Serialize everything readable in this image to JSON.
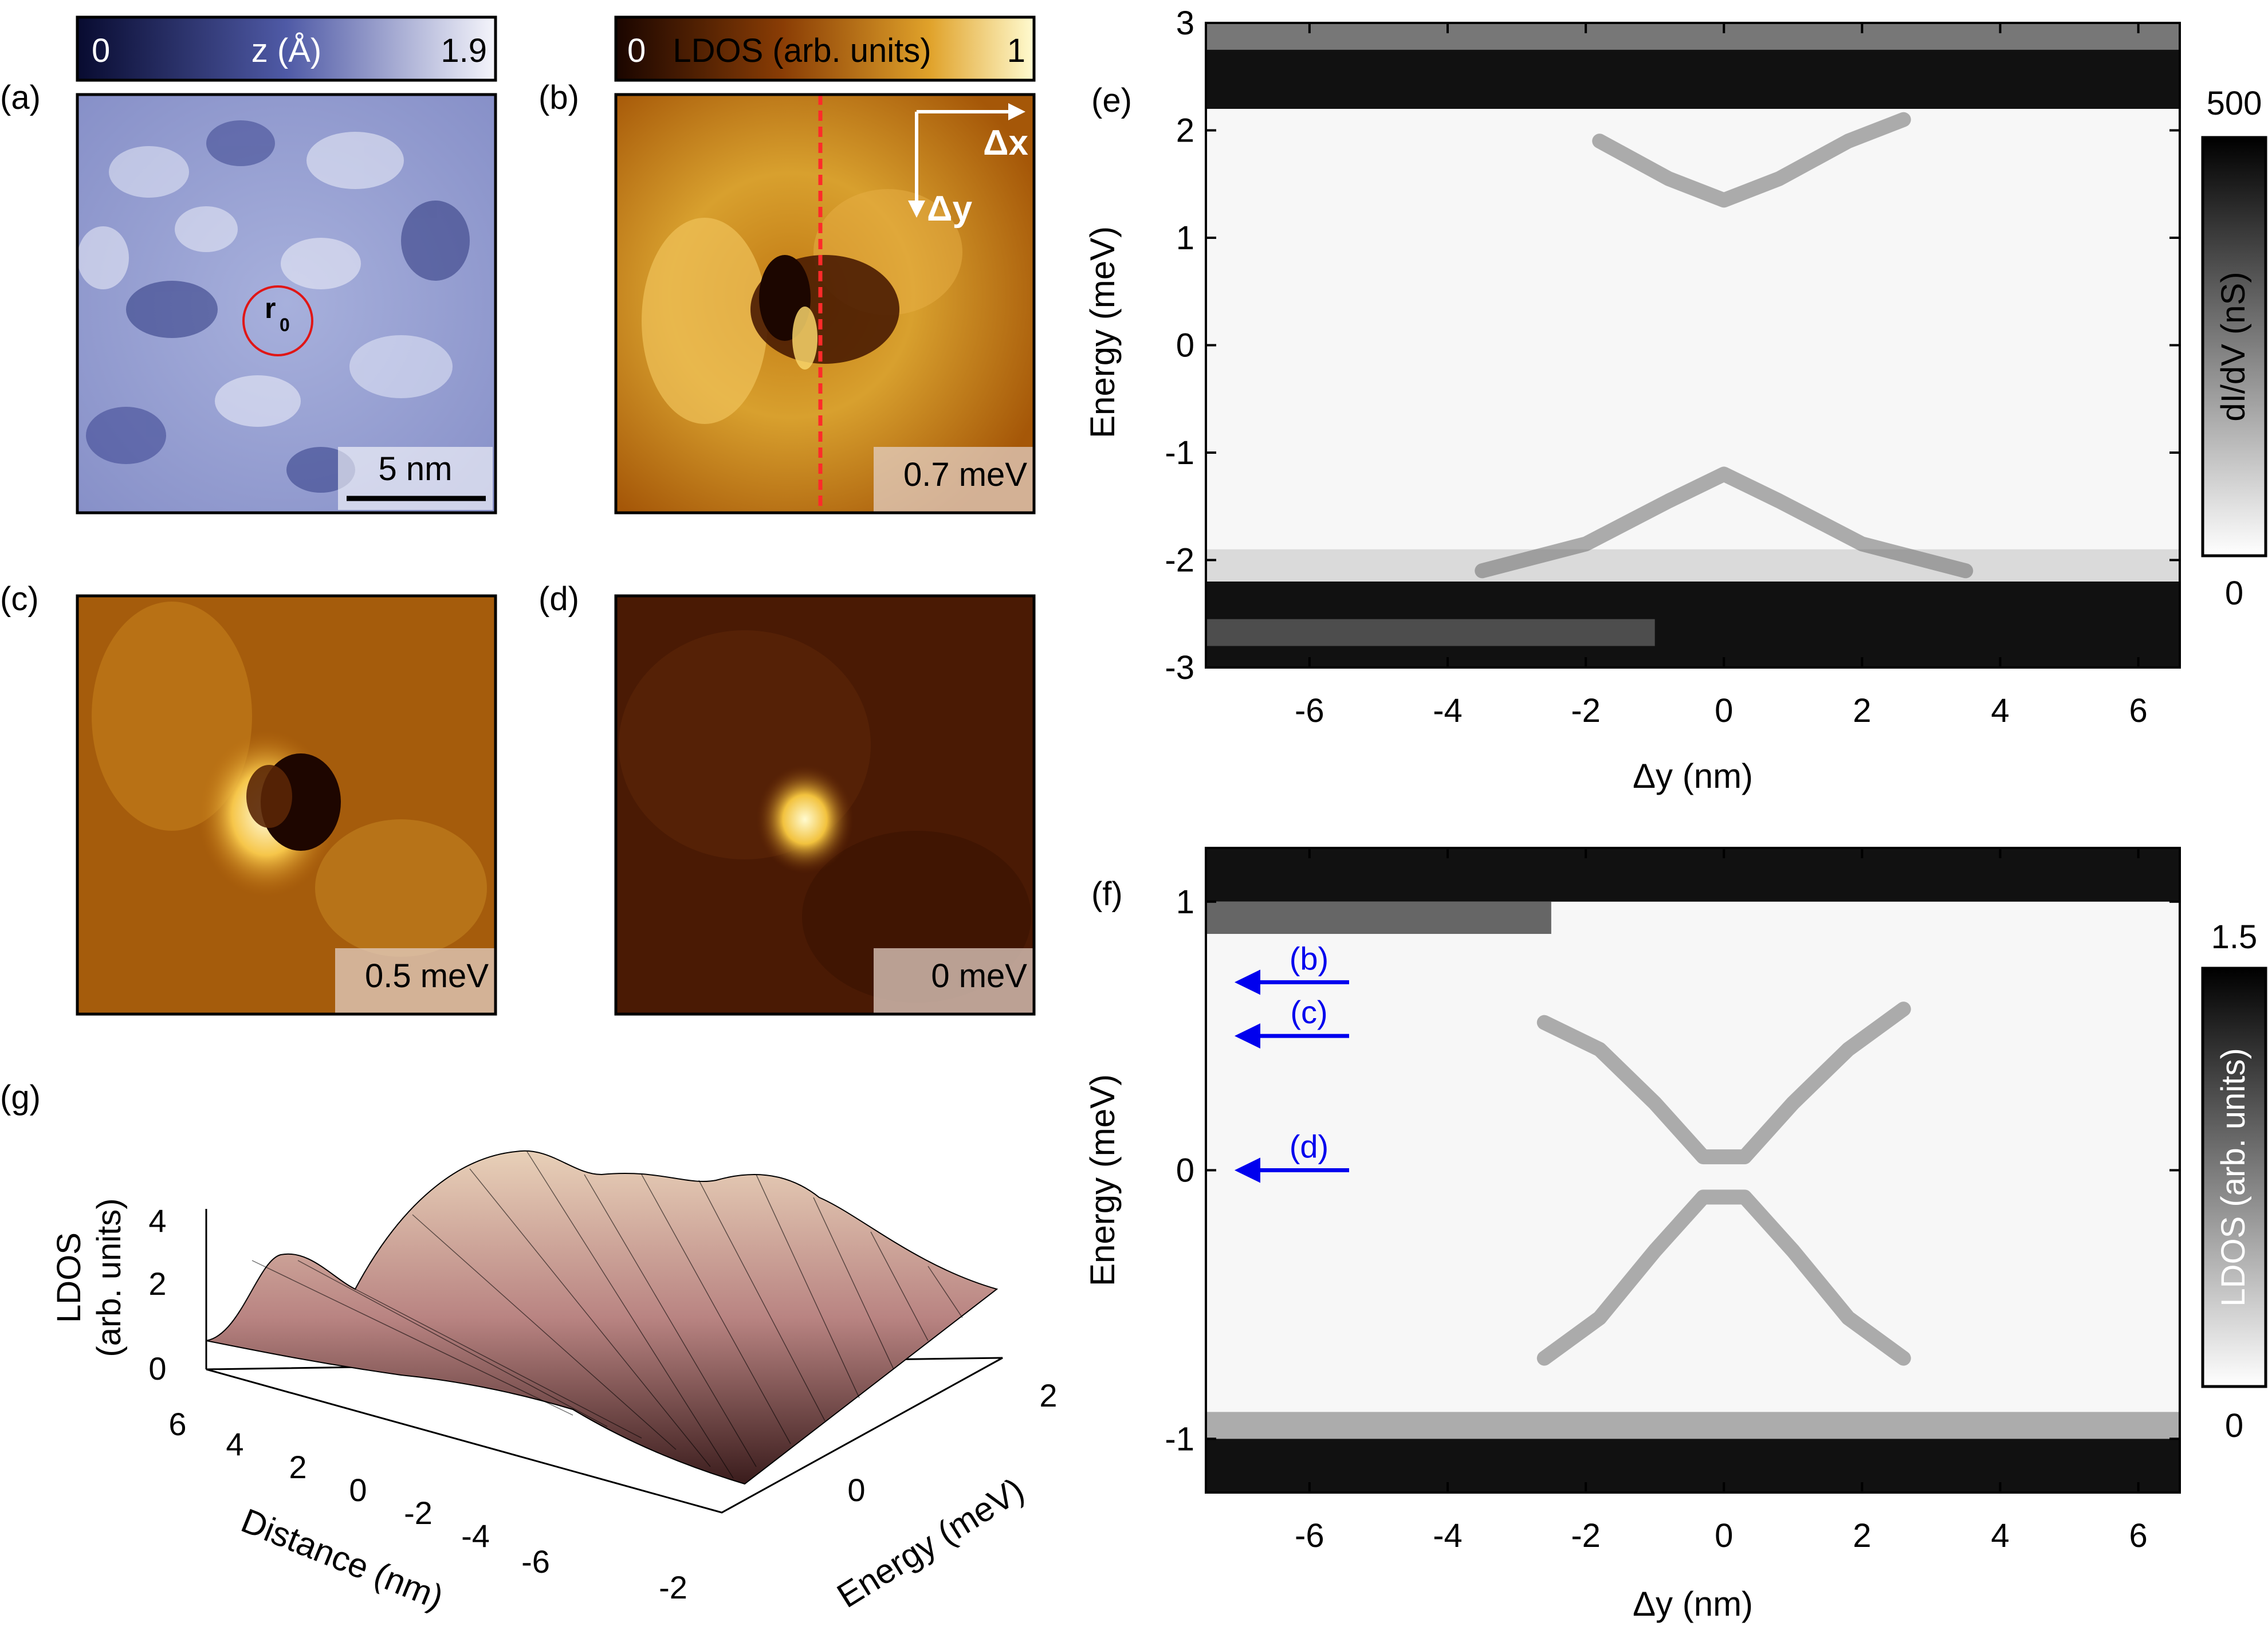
{
  "panels": {
    "a": {
      "label": "(a)",
      "colorbar": {
        "min": "0",
        "max": "1.9",
        "label": "z (Å)"
      },
      "marker_label": "r",
      "marker_sub": "0",
      "scalebar": "5 nm",
      "colors": {
        "dark": "#0b0f3d",
        "mid": "#6a77b7",
        "light": "#f4f4fb"
      }
    },
    "b": {
      "label": "(b)",
      "colorbar": {
        "min": "0",
        "max": "1",
        "label": "LDOS (arb. units)"
      },
      "energy": "0.7 meV",
      "dx_label": "Δx",
      "dy_label": "Δy",
      "line_color": "#ff2a2a"
    },
    "c": {
      "label": "(c)",
      "energy": "0.5 meV"
    },
    "d": {
      "label": "(d)",
      "energy": "0 meV"
    },
    "g": {
      "label": "(g)",
      "zlabel_line1": "LDOS",
      "zlabel_line2": "(arb. units)",
      "zticks": [
        "0",
        "2",
        "4"
      ],
      "distance_label": "Distance (nm)",
      "distance_ticks": [
        "6",
        "4",
        "2",
        "0",
        "-2",
        "-4",
        "-6"
      ],
      "energy_label": "Energy (meV)",
      "energy_ticks": [
        "-2",
        "0",
        "2"
      ]
    },
    "e": {
      "label": "(e)"
    },
    "f": {
      "label": "(f)"
    }
  },
  "chart_data": [
    {
      "panel": "e",
      "type": "heatmap",
      "xlabel": "Δy (nm)",
      "ylabel": "Energy (meV)",
      "xlim": [
        -7.5,
        6.6
      ],
      "ylim": [
        -3,
        3
      ],
      "xticks": [
        -6,
        -4,
        -2,
        0,
        2,
        4,
        6
      ],
      "yticks": [
        -3,
        -2,
        -1,
        0,
        1,
        2,
        3
      ],
      "colorbar": {
        "label": "dI/dV (nS)",
        "min": "0",
        "max": "500"
      },
      "coherence_peaks_meV": [
        2.2,
        2.55,
        -2.2,
        -2.55
      ],
      "features": [
        {
          "x": [
            -1.8,
            -0.8,
            0,
            0.8,
            1.8,
            2.6
          ],
          "y": [
            1.9,
            1.55,
            1.35,
            1.55,
            1.9,
            2.1
          ],
          "name": "upper branch"
        },
        {
          "x": [
            -3.5,
            -2.0,
            -0.8,
            0,
            0.8,
            2.0,
            3.5
          ],
          "y": [
            -2.1,
            -1.85,
            -1.45,
            -1.2,
            -1.45,
            -1.85,
            -2.1
          ],
          "name": "lower branch"
        }
      ]
    },
    {
      "panel": "f",
      "type": "heatmap",
      "xlabel": "Δy (nm)",
      "ylabel": "Energy (meV)",
      "xlim": [
        -7.5,
        6.6
      ],
      "ylim": [
        -1.2,
        1.2
      ],
      "xticks": [
        -6,
        -4,
        -2,
        0,
        2,
        4,
        6
      ],
      "yticks": [
        -1,
        0,
        1
      ],
      "colorbar": {
        "label": "LDOS (arb. units)",
        "min": "0",
        "max": "1.5"
      },
      "features": [
        {
          "x": [
            -2.6,
            -1.8,
            -1.0,
            -0.3,
            0.3,
            1.0,
            1.8,
            2.6
          ],
          "y": [
            0.55,
            0.45,
            0.25,
            0.05,
            0.05,
            0.25,
            0.45,
            0.6
          ],
          "name": "upper X"
        },
        {
          "x": [
            -2.6,
            -1.8,
            -1.0,
            -0.3,
            0.3,
            1.0,
            1.8,
            2.6
          ],
          "y": [
            -0.7,
            -0.55,
            -0.3,
            -0.1,
            -0.1,
            -0.3,
            -0.55,
            -0.7
          ],
          "name": "lower X"
        }
      ],
      "arrows": [
        {
          "label": "(b)",
          "energy": 0.7
        },
        {
          "label": "(c)",
          "energy": 0.5
        },
        {
          "label": "(d)",
          "energy": 0.0
        }
      ],
      "arrow_color": "#0000ee"
    }
  ]
}
